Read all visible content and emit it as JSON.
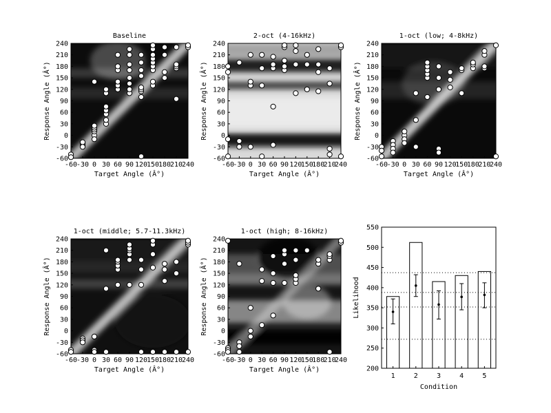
{
  "chart_data": [
    {
      "type": "heatmap",
      "title": "Baseline",
      "xlabel": "Target Angle (Â°)",
      "ylabel": "Response Angle (Â°)",
      "xlim": [
        -60,
        240
      ],
      "ylim": [
        -60,
        240
      ],
      "x_ticks": [
        "-60",
        "-30",
        "0",
        "30",
        "60",
        "90",
        "120",
        "150",
        "180",
        "210",
        "240"
      ],
      "y_ticks": [
        "-60",
        "-30",
        "0",
        "30",
        "60",
        "90",
        "120",
        "150",
        "180",
        "210",
        "240"
      ],
      "colormap": "grayscale",
      "points": [
        [
          -60,
          -50
        ],
        [
          -60,
          -57
        ],
        [
          -30,
          -27
        ],
        [
          -30,
          -22
        ],
        [
          -30,
          -18
        ],
        [
          -30,
          -30
        ],
        [
          0,
          0
        ],
        [
          0,
          10
        ],
        [
          0,
          15
        ],
        [
          0,
          20
        ],
        [
          0,
          25
        ],
        [
          0,
          -10
        ],
        [
          0,
          140
        ],
        [
          30,
          30
        ],
        [
          30,
          40
        ],
        [
          30,
          55
        ],
        [
          30,
          65
        ],
        [
          30,
          75
        ],
        [
          30,
          110
        ],
        [
          30,
          120
        ],
        [
          60,
          120
        ],
        [
          60,
          130
        ],
        [
          60,
          140
        ],
        [
          60,
          170
        ],
        [
          60,
          180
        ],
        [
          60,
          210
        ],
        [
          90,
          110
        ],
        [
          90,
          120
        ],
        [
          90,
          135
        ],
        [
          90,
          150
        ],
        [
          90,
          170
        ],
        [
          90,
          185
        ],
        [
          90,
          210
        ],
        [
          90,
          225
        ],
        [
          120,
          100
        ],
        [
          120,
          115
        ],
        [
          120,
          120
        ],
        [
          120,
          125
        ],
        [
          120,
          155
        ],
        [
          120,
          170
        ],
        [
          120,
          190
        ],
        [
          120,
          210
        ],
        [
          120,
          -55
        ],
        [
          150,
          130
        ],
        [
          150,
          140
        ],
        [
          150,
          170
        ],
        [
          150,
          180
        ],
        [
          150,
          190
        ],
        [
          150,
          200
        ],
        [
          150,
          210
        ],
        [
          150,
          225
        ],
        [
          150,
          235
        ],
        [
          180,
          150
        ],
        [
          180,
          165
        ],
        [
          180,
          210
        ],
        [
          180,
          230
        ],
        [
          210,
          95
        ],
        [
          210,
          175
        ],
        [
          210,
          180
        ],
        [
          210,
          185
        ],
        [
          210,
          230
        ],
        [
          240,
          230
        ],
        [
          240,
          235
        ]
      ]
    },
    {
      "type": "heatmap",
      "title": "2-oct (4-16kHz)",
      "xlabel": "Target Angle (Â°)",
      "ylabel": "Response Angle (Â°)",
      "xlim": [
        -60,
        240
      ],
      "ylim": [
        -60,
        240
      ],
      "x_ticks": [
        "-60",
        "-30",
        "0",
        "30",
        "60",
        "90",
        "120",
        "150",
        "180",
        "210",
        "240"
      ],
      "y_ticks": [
        "-60",
        "-30",
        "0",
        "30",
        "60",
        "90",
        "120",
        "150",
        "180",
        "210",
        "240"
      ],
      "colormap": "grayscale",
      "points": [
        [
          -60,
          -55
        ],
        [
          -60,
          -10
        ],
        [
          -60,
          165
        ],
        [
          -60,
          180
        ],
        [
          -30,
          -15
        ],
        [
          -30,
          -30
        ],
        [
          -30,
          190
        ],
        [
          0,
          -30
        ],
        [
          0,
          130
        ],
        [
          0,
          140
        ],
        [
          0,
          210
        ],
        [
          30,
          -55
        ],
        [
          30,
          130
        ],
        [
          30,
          175
        ],
        [
          30,
          210
        ],
        [
          60,
          75
        ],
        [
          60,
          -25
        ],
        [
          60,
          175
        ],
        [
          60,
          185
        ],
        [
          60,
          205
        ],
        [
          90,
          170
        ],
        [
          90,
          180
        ],
        [
          90,
          195
        ],
        [
          90,
          230
        ],
        [
          90,
          235
        ],
        [
          120,
          110
        ],
        [
          120,
          185
        ],
        [
          120,
          220
        ],
        [
          120,
          235
        ],
        [
          150,
          120
        ],
        [
          150,
          185
        ],
        [
          150,
          210
        ],
        [
          180,
          115
        ],
        [
          180,
          165
        ],
        [
          180,
          185
        ],
        [
          180,
          225
        ],
        [
          210,
          135
        ],
        [
          210,
          175
        ],
        [
          210,
          -35
        ],
        [
          210,
          -50
        ],
        [
          240,
          230
        ],
        [
          240,
          235
        ],
        [
          240,
          -55
        ]
      ]
    },
    {
      "type": "heatmap",
      "title": "1-oct (low; 4-8kHz)",
      "xlabel": "Target Angle (Â°)",
      "ylabel": "Response Angle (Â°)",
      "xlim": [
        -60,
        240
      ],
      "ylim": [
        -60,
        240
      ],
      "x_ticks": [
        "-60",
        "-30",
        "0",
        "30",
        "60",
        "90",
        "120",
        "150",
        "180",
        "210",
        "240"
      ],
      "y_ticks": [
        "-60",
        "-30",
        "0",
        "30",
        "60",
        "90",
        "120",
        "150",
        "180",
        "210",
        "240"
      ],
      "colormap": "grayscale",
      "points": [
        [
          -60,
          -30
        ],
        [
          -60,
          -40
        ],
        [
          -60,
          -55
        ],
        [
          -30,
          -15
        ],
        [
          -30,
          -25
        ],
        [
          -30,
          -35
        ],
        [
          -30,
          -45
        ],
        [
          0,
          0
        ],
        [
          0,
          10
        ],
        [
          0,
          -10
        ],
        [
          0,
          -20
        ],
        [
          30,
          40
        ],
        [
          30,
          110
        ],
        [
          30,
          -30
        ],
        [
          60,
          100
        ],
        [
          60,
          150
        ],
        [
          60,
          160
        ],
        [
          60,
          170
        ],
        [
          60,
          180
        ],
        [
          60,
          190
        ],
        [
          90,
          120
        ],
        [
          90,
          150
        ],
        [
          90,
          180
        ],
        [
          90,
          -35
        ],
        [
          90,
          -45
        ],
        [
          120,
          125
        ],
        [
          120,
          145
        ],
        [
          120,
          165
        ],
        [
          150,
          110
        ],
        [
          150,
          170
        ],
        [
          150,
          175
        ],
        [
          180,
          175
        ],
        [
          180,
          185
        ],
        [
          180,
          190
        ],
        [
          210,
          175
        ],
        [
          210,
          180
        ],
        [
          210,
          210
        ],
        [
          210,
          220
        ],
        [
          240,
          235
        ],
        [
          240,
          -55
        ]
      ]
    },
    {
      "type": "heatmap",
      "title": "1-oct (middle; 5.7-11.3kHz)",
      "xlabel": "Target Angle (Â°)",
      "ylabel": "Response Angle (Â°)",
      "xlim": [
        -60,
        240
      ],
      "ylim": [
        -60,
        240
      ],
      "x_ticks": [
        "-60",
        "-30",
        "0",
        "30",
        "60",
        "90",
        "120",
        "150",
        "180",
        "210",
        "240"
      ],
      "y_ticks": [
        "-60",
        "-30",
        "0",
        "30",
        "60",
        "90",
        "120",
        "150",
        "180",
        "210",
        "240"
      ],
      "colormap": "grayscale",
      "points": [
        [
          -60,
          -50
        ],
        [
          -60,
          -55
        ],
        [
          -30,
          -20
        ],
        [
          -30,
          -25
        ],
        [
          -30,
          -30
        ],
        [
          0,
          -15
        ],
        [
          0,
          -50
        ],
        [
          0,
          -55
        ],
        [
          30,
          110
        ],
        [
          30,
          210
        ],
        [
          30,
          -55
        ],
        [
          60,
          120
        ],
        [
          60,
          160
        ],
        [
          60,
          170
        ],
        [
          60,
          180
        ],
        [
          60,
          185
        ],
        [
          90,
          120
        ],
        [
          90,
          185
        ],
        [
          90,
          200
        ],
        [
          90,
          210
        ],
        [
          90,
          215
        ],
        [
          90,
          225
        ],
        [
          120,
          120
        ],
        [
          120,
          160
        ],
        [
          120,
          185
        ],
        [
          120,
          -55
        ],
        [
          150,
          165
        ],
        [
          150,
          200
        ],
        [
          150,
          225
        ],
        [
          150,
          235
        ],
        [
          150,
          -55
        ],
        [
          180,
          130
        ],
        [
          180,
          160
        ],
        [
          180,
          175
        ],
        [
          180,
          -55
        ],
        [
          210,
          150
        ],
        [
          210,
          180
        ],
        [
          210,
          -55
        ],
        [
          240,
          225
        ],
        [
          240,
          230
        ],
        [
          240,
          235
        ],
        [
          240,
          -55
        ]
      ]
    },
    {
      "type": "heatmap",
      "title": "1-oct (high; 8-16kHz)",
      "xlabel": "Target Angle (Â°)",
      "ylabel": "Response Angle (Â°)",
      "xlim": [
        -60,
        240
      ],
      "ylim": [
        -60,
        240
      ],
      "x_ticks": [
        "-60",
        "-30",
        "0",
        "30",
        "60",
        "90",
        "120",
        "150",
        "180",
        "210",
        "240"
      ],
      "y_ticks": [
        "-60",
        "-30",
        "0",
        "30",
        "60",
        "90",
        "120",
        "150",
        "180",
        "210",
        "240"
      ],
      "colormap": "grayscale",
      "points": [
        [
          -60,
          -45
        ],
        [
          -60,
          -50
        ],
        [
          -60,
          -55
        ],
        [
          -60,
          235
        ],
        [
          -30,
          -30
        ],
        [
          -30,
          -40
        ],
        [
          -30,
          -55
        ],
        [
          -30,
          175
        ],
        [
          0,
          0
        ],
        [
          0,
          -15
        ],
        [
          0,
          60
        ],
        [
          30,
          15
        ],
        [
          30,
          130
        ],
        [
          30,
          160
        ],
        [
          60,
          40
        ],
        [
          60,
          125
        ],
        [
          60,
          150
        ],
        [
          60,
          195
        ],
        [
          90,
          125
        ],
        [
          90,
          175
        ],
        [
          90,
          200
        ],
        [
          90,
          210
        ],
        [
          120,
          125
        ],
        [
          120,
          135
        ],
        [
          120,
          145
        ],
        [
          120,
          185
        ],
        [
          120,
          210
        ],
        [
          150,
          210
        ],
        [
          180,
          110
        ],
        [
          180,
          175
        ],
        [
          180,
          185
        ],
        [
          210,
          185
        ],
        [
          210,
          195
        ],
        [
          210,
          200
        ],
        [
          210,
          -55
        ],
        [
          240,
          230
        ],
        [
          240,
          235
        ]
      ]
    },
    {
      "type": "bar",
      "xlabel": "Condition",
      "ylabel": "Likelihood",
      "categories": [
        "1",
        "2",
        "3",
        "4",
        "5"
      ],
      "values": [
        378,
        512,
        415,
        430,
        440
      ],
      "error_mean": [
        340,
        405,
        358,
        377,
        382
      ],
      "error_low": [
        310,
        378,
        322,
        345,
        350
      ],
      "error_high": [
        372,
        432,
        392,
        410,
        412
      ],
      "ylim": [
        200,
        550
      ],
      "x_ticks": [
        "1",
        "2",
        "3",
        "4",
        "5"
      ],
      "y_ticks": [
        "200",
        "250",
        "300",
        "350",
        "400",
        "450",
        "500",
        "550"
      ],
      "reference_lines": [
        272,
        352,
        388,
        437
      ]
    }
  ]
}
